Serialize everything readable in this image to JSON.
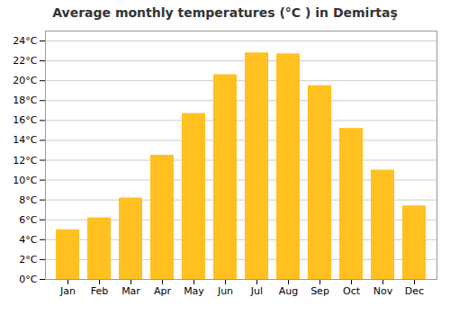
{
  "chart_data": {
    "type": "bar",
    "title": "Average monthly temperatures (°C ) in Demirtaş",
    "categories": [
      "Jan",
      "Feb",
      "Mar",
      "Apr",
      "May",
      "Jun",
      "Jul",
      "Aug",
      "Sep",
      "Oct",
      "Nov",
      "Dec"
    ],
    "values": [
      5.0,
      6.2,
      8.2,
      12.5,
      16.7,
      20.6,
      22.8,
      22.7,
      19.5,
      15.2,
      11.0,
      7.4
    ],
    "color": "#FFC020",
    "ylim": [
      0,
      25
    ],
    "yticks": [
      {
        "value": 0,
        "label": "0°C"
      },
      {
        "value": 2,
        "label": "2°C"
      },
      {
        "value": 4,
        "label": "4°C"
      },
      {
        "value": 6,
        "label": "6°C"
      },
      {
        "value": 8,
        "label": "8°C"
      },
      {
        "value": 10,
        "label": "10°C"
      },
      {
        "value": 12,
        "label": "12°C"
      },
      {
        "value": 14,
        "label": "14°C"
      },
      {
        "value": 16,
        "label": "16°C"
      },
      {
        "value": 18,
        "label": "18°C"
      },
      {
        "value": 20,
        "label": "20°C"
      },
      {
        "value": 22,
        "label": "22°C"
      },
      {
        "value": 24,
        "label": "24°C"
      }
    ],
    "grid": true
  }
}
